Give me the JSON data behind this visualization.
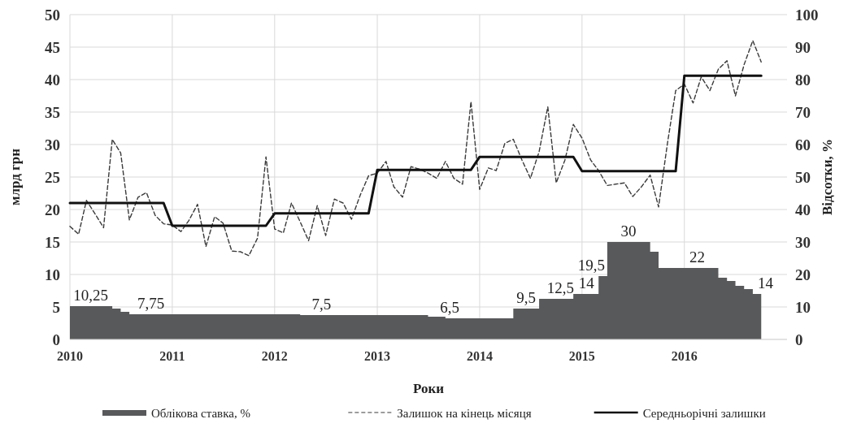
{
  "chart_data": {
    "type": "line",
    "xlabel": "Роки",
    "ylabel": "млрд грн",
    "y2label": "Відсотки, %",
    "x": [
      "2010-01",
      "2010-02",
      "2010-03",
      "2010-04",
      "2010-05",
      "2010-06",
      "2010-07",
      "2010-08",
      "2010-09",
      "2010-10",
      "2010-11",
      "2010-12",
      "2011-01",
      "2011-02",
      "2011-03",
      "2011-04",
      "2011-05",
      "2011-06",
      "2011-07",
      "2011-08",
      "2011-09",
      "2011-10",
      "2011-11",
      "2011-12",
      "2012-01",
      "2012-02",
      "2012-03",
      "2012-04",
      "2012-05",
      "2012-06",
      "2012-07",
      "2012-08",
      "2012-09",
      "2012-10",
      "2012-11",
      "2012-12",
      "2013-01",
      "2013-02",
      "2013-03",
      "2013-04",
      "2013-05",
      "2013-06",
      "2013-07",
      "2013-08",
      "2013-09",
      "2013-10",
      "2013-11",
      "2013-12",
      "2014-01",
      "2014-02",
      "2014-03",
      "2014-04",
      "2014-05",
      "2014-06",
      "2014-07",
      "2014-08",
      "2014-09",
      "2014-10",
      "2014-11",
      "2014-12",
      "2015-01",
      "2015-02",
      "2015-03",
      "2015-04",
      "2015-05",
      "2015-06",
      "2015-07",
      "2015-08",
      "2015-09",
      "2015-10",
      "2015-11",
      "2015-12",
      "2016-01",
      "2016-02",
      "2016-03",
      "2016-04",
      "2016-05",
      "2016-06",
      "2016-07",
      "2016-08",
      "2016-09",
      "2016-10"
    ],
    "xlim": [
      "2010-01",
      "2017-01"
    ],
    "xticks": [
      {
        "value": "2010-01",
        "label": "2010"
      },
      {
        "value": "2011-01",
        "label": "2011"
      },
      {
        "value": "2012-01",
        "label": "2012"
      },
      {
        "value": "2013-01",
        "label": "2013"
      },
      {
        "value": "2014-01",
        "label": "2014"
      },
      {
        "value": "2015-01",
        "label": "2015"
      },
      {
        "value": "2016-01",
        "label": "2016"
      }
    ],
    "ylim": [
      0,
      50
    ],
    "yticks": [
      0,
      5,
      10,
      15,
      20,
      25,
      30,
      35,
      40,
      45,
      50
    ],
    "y2lim": [
      0,
      100
    ],
    "y2ticks": [
      0,
      10,
      20,
      30,
      40,
      50,
      60,
      70,
      80,
      90,
      100
    ],
    "grid": true,
    "legend": "bottom",
    "series": [
      {
        "name": "Облікова ставка, %",
        "type": "area",
        "axis": "y2",
        "color": "#58595b",
        "values": [
          10.25,
          10.25,
          10.25,
          10.25,
          10.25,
          9.5,
          8.5,
          7.75,
          7.75,
          7.75,
          7.75,
          7.75,
          7.75,
          7.75,
          7.75,
          7.75,
          7.75,
          7.75,
          7.75,
          7.75,
          7.75,
          7.75,
          7.75,
          7.75,
          7.75,
          7.75,
          7.75,
          7.5,
          7.5,
          7.5,
          7.5,
          7.5,
          7.5,
          7.5,
          7.5,
          7.5,
          7.5,
          7.5,
          7.5,
          7.5,
          7.5,
          7.5,
          7,
          7,
          6.5,
          6.5,
          6.5,
          6.5,
          6.5,
          6.5,
          6.5,
          6.5,
          9.5,
          9.5,
          9.5,
          12.5,
          12.5,
          12.5,
          12.5,
          14,
          14,
          14,
          19.5,
          30,
          30,
          30,
          30,
          30,
          27,
          22,
          22,
          22,
          22,
          22,
          22,
          22,
          19,
          18,
          16.5,
          15.5,
          14,
          14
        ],
        "value_labels": [
          null,
          null,
          "10,25",
          null,
          null,
          null,
          null,
          null,
          null,
          "7,75",
          null,
          null,
          null,
          null,
          null,
          null,
          null,
          null,
          null,
          null,
          null,
          null,
          null,
          null,
          null,
          null,
          null,
          null,
          null,
          "7,5",
          null,
          null,
          null,
          null,
          null,
          null,
          null,
          null,
          null,
          null,
          null,
          null,
          null,
          null,
          "6,5",
          null,
          null,
          null,
          null,
          null,
          null,
          null,
          null,
          "9,5",
          null,
          null,
          null,
          "12,5",
          null,
          null,
          "14",
          null,
          "19,5",
          null,
          null,
          "30",
          null,
          null,
          null,
          null,
          null,
          null,
          null,
          "22",
          null,
          null,
          null,
          null,
          null,
          null,
          null,
          "14"
        ]
      },
      {
        "name": "Залишок на кінець місяця",
        "line_style": "dashed",
        "color": "#3a3a3a",
        "values": [
          17.4,
          16.2,
          21.4,
          19.3,
          17.2,
          30.8,
          28.7,
          18.4,
          21.9,
          22.6,
          19.1,
          17.8,
          17.6,
          16.6,
          18.3,
          20.8,
          14.3,
          18.9,
          17.9,
          13.6,
          13.5,
          12.9,
          15.6,
          28.1,
          17.0,
          16.4,
          21.0,
          18.1,
          15.2,
          20.6,
          16.0,
          21.6,
          21.0,
          18.5,
          22.2,
          25.2,
          25.6,
          27.4,
          23.5,
          21.9,
          26.6,
          26.2,
          25.6,
          24.8,
          27.4,
          24.8,
          23.9,
          36.6,
          23.1,
          26.4,
          26.0,
          30.2,
          30.8,
          27.6,
          24.8,
          28.9,
          35.8,
          24.1,
          27.6,
          33.1,
          31.0,
          27.6,
          26.0,
          23.7,
          23.9,
          24.1,
          22.0,
          23.5,
          25.3,
          20.4,
          30.0,
          38.3,
          39.3,
          36.4,
          40.4,
          38.3,
          41.6,
          42.9,
          37.5,
          42.3,
          46.0,
          42.7
        ]
      },
      {
        "name": "Середньорічні залишки",
        "line_style": "solid",
        "color": "#111111",
        "values": [
          21,
          21,
          21,
          21,
          21,
          21,
          21,
          21,
          21,
          21,
          21,
          21,
          17.5,
          17.5,
          17.5,
          17.5,
          17.5,
          17.5,
          17.5,
          17.5,
          17.5,
          17.5,
          17.5,
          17.5,
          19.4,
          19.4,
          19.4,
          19.4,
          19.4,
          19.4,
          19.4,
          19.4,
          19.4,
          19.4,
          19.4,
          19.4,
          26.1,
          26.1,
          26.1,
          26.1,
          26.1,
          26.1,
          26.1,
          26.1,
          26.1,
          26.1,
          26.1,
          26.1,
          28.1,
          28.1,
          28.1,
          28.1,
          28.1,
          28.1,
          28.1,
          28.1,
          28.1,
          28.1,
          28.1,
          28.1,
          25.9,
          25.9,
          25.9,
          25.9,
          25.9,
          25.9,
          25.9,
          25.9,
          25.9,
          25.9,
          25.9,
          25.9,
          40.6,
          40.6,
          40.6,
          40.6,
          40.6,
          40.6,
          40.6,
          40.6,
          40.6,
          40.6
        ]
      }
    ]
  }
}
